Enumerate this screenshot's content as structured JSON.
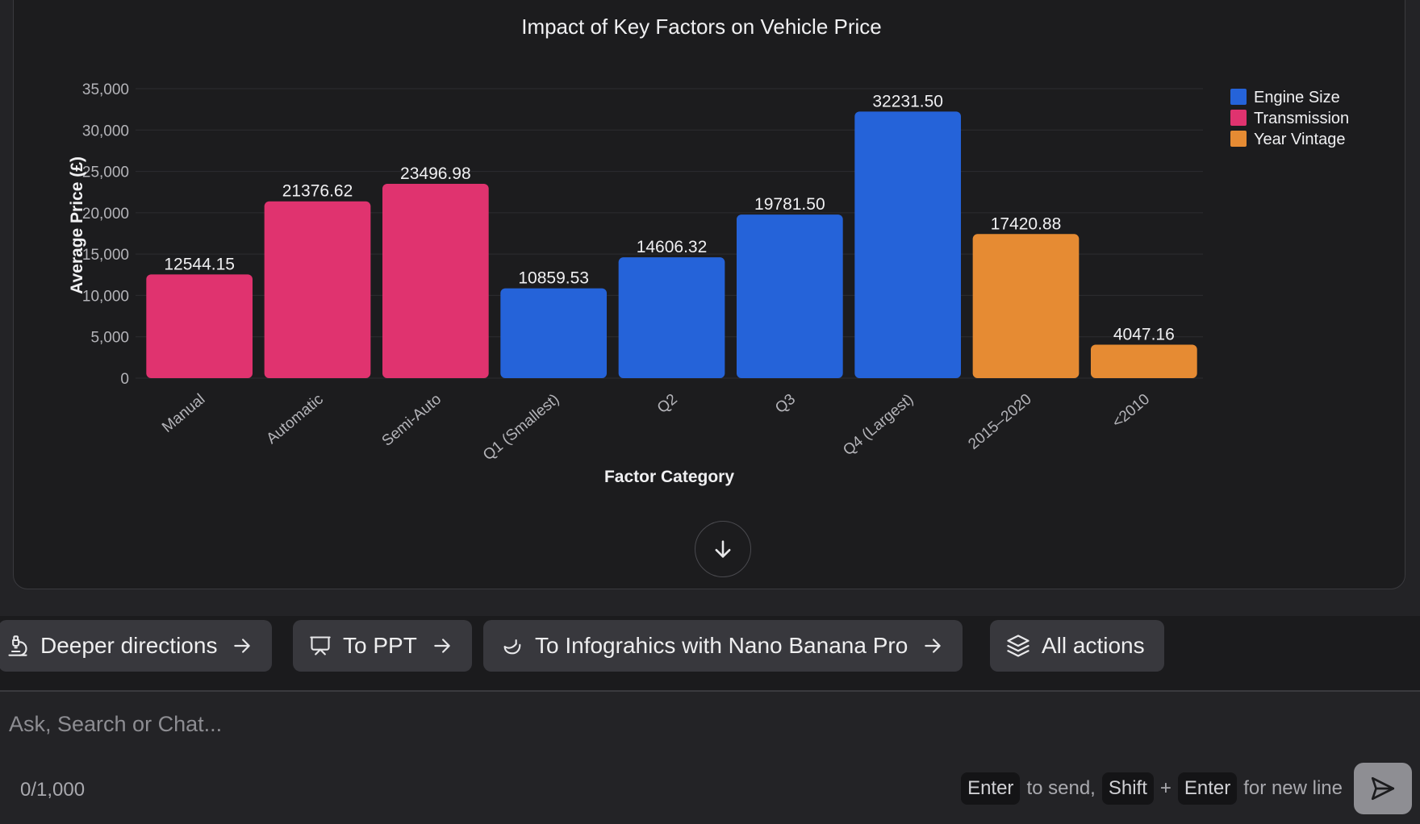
{
  "chart_data": {
    "type": "bar",
    "title": "Impact of Key Factors on Vehicle Price",
    "xlabel": "Factor Category",
    "ylabel": "Average Price (£)",
    "ylim": [
      0,
      35000
    ],
    "yticks": [
      0,
      5000,
      10000,
      15000,
      20000,
      25000,
      30000,
      35000
    ],
    "ytick_labels": [
      "0",
      "5,000",
      "10,000",
      "15,000",
      "20,000",
      "25,000",
      "30,000",
      "35,000"
    ],
    "grid": true,
    "legend_position": "top-right",
    "categories": [
      "Manual",
      "Automatic",
      "Semi-Auto",
      "Q1 (Smallest)",
      "Q2",
      "Q3",
      "Q4 (Largest)",
      "2015–2020",
      "<2010"
    ],
    "values": [
      12544.15,
      21376.62,
      23496.98,
      10859.53,
      14606.32,
      19781.5,
      32231.5,
      17420.88,
      4047.16
    ],
    "value_labels": [
      "12544.15",
      "21376.62",
      "23496.98",
      "10859.53",
      "14606.32",
      "19781.50",
      "32231.50",
      "17420.88",
      "4047.16"
    ],
    "bar_groups": [
      "Transmission",
      "Transmission",
      "Transmission",
      "Engine Size",
      "Engine Size",
      "Engine Size",
      "Engine Size",
      "Year Vintage",
      "Year Vintage"
    ],
    "legend": [
      {
        "name": "Engine Size",
        "color": "#2563d9"
      },
      {
        "name": "Transmission",
        "color": "#e0336f"
      },
      {
        "name": "Year Vintage",
        "color": "#e68b33"
      }
    ]
  },
  "actions": {
    "deeper": "Deeper directions",
    "ppt": "To PPT",
    "infographics": "To Infograhics with Nano Banana Pro",
    "all": "All actions"
  },
  "composer": {
    "placeholder": "Ask, Search or Chat...",
    "counter": "0/1,000",
    "hint_enter": "Enter",
    "hint_to_send": "to send,",
    "hint_shift": "Shift",
    "hint_plus": "+",
    "hint_enter2": "Enter",
    "hint_new_line": "for new line"
  },
  "icons": {
    "deeper": "microscope-icon",
    "ppt": "presentation-icon",
    "infographics": "banana-icon",
    "all": "layers-icon",
    "scroll": "arrow-down-icon",
    "send": "send-icon"
  }
}
